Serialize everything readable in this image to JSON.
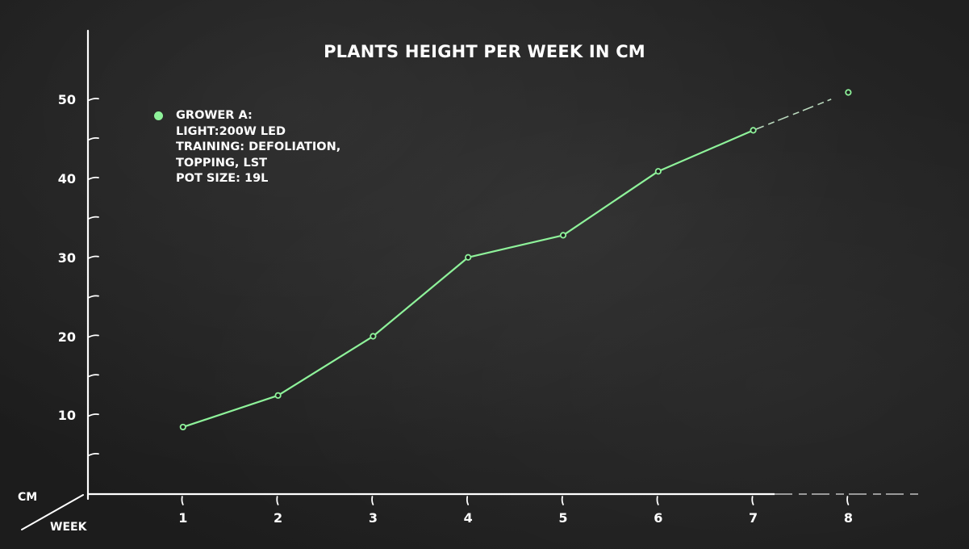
{
  "title": "PLANTS HEIGHT PER WEEK IN CM",
  "axes": {
    "y_name": "CM",
    "x_name": "WEEK"
  },
  "legend": {
    "marker_color": "#8ef29a",
    "lines": [
      "GROWER A:",
      "LIGHT:200W LED",
      "TRAINING: DEFOLIATION,",
      "TOPPING, LST",
      "POT SIZE: 19L"
    ]
  },
  "colors": {
    "background": "#232323",
    "series": "#8ef29a",
    "axis": "#ffffff",
    "text": "#ffffff"
  },
  "chart_data": {
    "type": "line",
    "title": "PLANTS HEIGHT PER WEEK IN CM",
    "xlabel": "WEEK",
    "ylabel": "CM",
    "categories": [
      "1",
      "2",
      "3",
      "4",
      "5",
      "6",
      "7",
      "8"
    ],
    "x": [
      1,
      2,
      3,
      4,
      5,
      6,
      7,
      8
    ],
    "series": [
      {
        "name": "GROWER A",
        "values": [
          8.6,
          12.6,
          20.1,
          30.1,
          32.9,
          41.0,
          46.2,
          51.0
        ],
        "description": "LIGHT:200W LED; TRAINING: DEFOLIATION, TOPPING, LST; POT SIZE: 19L",
        "note": "segment from week 7 to week 8 drawn dashed"
      }
    ],
    "y_tick_labels": [
      "10",
      "20",
      "30",
      "40",
      "50"
    ],
    "y_minor_ticks_every": 5,
    "ylim": [
      0,
      55
    ],
    "xlim": [
      0,
      9
    ],
    "grid": false,
    "legend_position": "top-left"
  }
}
